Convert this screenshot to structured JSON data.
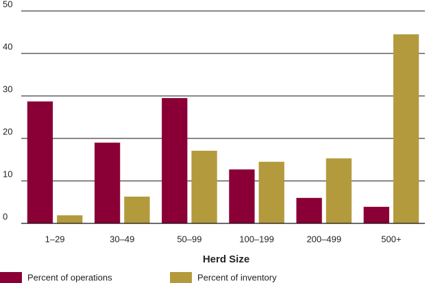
{
  "chart_data": {
    "type": "bar",
    "x_label": "Herd Size",
    "categories": [
      "1–29",
      "30–49",
      "50–99",
      "100–199",
      "200–499",
      "500+"
    ],
    "series": [
      {
        "name": "Percent of operations",
        "color": "#8a0036",
        "values": [
          28.7,
          19,
          29.5,
          12.7,
          6,
          3.9
        ]
      },
      {
        "name": "Percent of inventory",
        "color": "#b39a3c",
        "values": [
          1.9,
          6.3,
          17.1,
          14.5,
          15.3,
          44.5
        ]
      }
    ],
    "ylim": [
      0,
      50
    ],
    "yticks": [
      0,
      10,
      20,
      30,
      40,
      50
    ],
    "grid": true,
    "legend": "bottom"
  }
}
